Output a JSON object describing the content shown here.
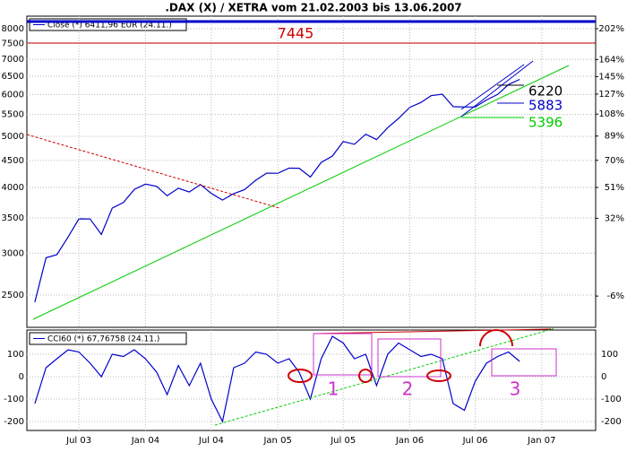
{
  "chart_data": [
    {
      "type": "line",
      "title": ".DAX (X) / XETRA vom 21.02.2003 bis 13.06.2007",
      "log_y": true,
      "x": [
        "2003-03",
        "2003-04",
        "2003-05",
        "2003-06",
        "2003-07",
        "2003-08",
        "2003-09",
        "2003-10",
        "2003-11",
        "2003-12",
        "2004-01",
        "2004-02",
        "2004-03",
        "2004-04",
        "2004-05",
        "2004-06",
        "2004-07",
        "2004-08",
        "2004-09",
        "2004-10",
        "2004-11",
        "2004-12",
        "2005-01",
        "2005-02",
        "2005-03",
        "2005-04",
        "2005-05",
        "2005-06",
        "2005-07",
        "2005-08",
        "2005-09",
        "2005-10",
        "2005-11",
        "2005-12",
        "2006-01",
        "2006-02",
        "2006-03",
        "2006-04",
        "2006-05",
        "2006-06",
        "2006-07",
        "2006-08",
        "2006-09",
        "2006-10",
        "2006-11"
      ],
      "series": [
        {
          "name": "Close (*) 6411,96 EUR (24.11.)",
          "color": "#0000cc",
          "values": [
            2424,
            2942,
            2982,
            3221,
            3487,
            3484,
            3257,
            3655,
            3745,
            3965,
            4058,
            4018,
            3856,
            3985,
            3921,
            4052,
            3896,
            3785,
            3893,
            3960,
            4126,
            4256,
            4255,
            4350,
            4349,
            4185,
            4461,
            4587,
            4887,
            4829,
            5044,
            4929,
            5193,
            5408,
            5674,
            5797,
            5970,
            6009,
            5692,
            5683,
            5682,
            5859,
            6004,
            6268,
            6412
          ]
        }
      ],
      "xlim": [
        "2003-02-21",
        "2007-06-13"
      ],
      "ylim": [
        2171,
        8450
      ],
      "yticks": [
        2500,
        3000,
        3500,
        4000,
        4500,
        5000,
        5500,
        6000,
        6500,
        7000,
        7500,
        8000
      ],
      "y2lim": [
        -18,
        219
      ],
      "y2ticks": [
        {
          "value": -6,
          "label": "-6%"
        },
        {
          "value": 32,
          "label": "32%"
        },
        {
          "value": 51,
          "label": "51%"
        },
        {
          "value": 70,
          "label": "70%"
        },
        {
          "value": 89,
          "label": "89%"
        },
        {
          "value": 108,
          "label": "108%"
        },
        {
          "value": 127,
          "label": "127%"
        },
        {
          "value": 145,
          "label": "145%"
        },
        {
          "value": 164,
          "label": "164%"
        },
        {
          "value": 202,
          "label": "202%"
        }
      ],
      "annotations": [
        "7445",
        "6220",
        "5883",
        "5396"
      ],
      "grid": true
    },
    {
      "type": "line",
      "x": [
        "2003-03",
        "2003-04",
        "2003-05",
        "2003-06",
        "2003-07",
        "2003-08",
        "2003-09",
        "2003-10",
        "2003-11",
        "2003-12",
        "2004-01",
        "2004-02",
        "2004-03",
        "2004-04",
        "2004-05",
        "2004-06",
        "2004-07",
        "2004-08",
        "2004-09",
        "2004-10",
        "2004-11",
        "2004-12",
        "2005-01",
        "2005-02",
        "2005-03",
        "2005-04",
        "2005-05",
        "2005-06",
        "2005-07",
        "2005-08",
        "2005-09",
        "2005-10",
        "2005-11",
        "2005-12",
        "2006-01",
        "2006-02",
        "2006-03",
        "2006-04",
        "2006-05",
        "2006-06",
        "2006-07",
        "2006-08",
        "2006-09",
        "2006-10",
        "2006-11"
      ],
      "series": [
        {
          "name": "CCI60 (*) 67,76758 (24.11.)",
          "color": "#0000cc",
          "values": [
            -120,
            40,
            80,
            120,
            110,
            60,
            0,
            100,
            90,
            120,
            80,
            20,
            -80,
            50,
            -40,
            60,
            -100,
            -200,
            40,
            60,
            110,
            100,
            60,
            80,
            20,
            -100,
            80,
            180,
            150,
            80,
            100,
            -40,
            100,
            150,
            120,
            90,
            100,
            80,
            -120,
            -150,
            -20,
            60,
            90,
            110,
            68
          ]
        }
      ],
      "xlim": [
        "2003-02-21",
        "2007-06-13"
      ],
      "xticks": [
        {
          "value": "2003-07",
          "label": "Jul 03"
        },
        {
          "value": "2004-01",
          "label": "Jan 04"
        },
        {
          "value": "2004-07",
          "label": "Jul 04"
        },
        {
          "value": "2005-01",
          "label": "Jan 05"
        },
        {
          "value": "2005-07",
          "label": "Jul 05"
        },
        {
          "value": "2006-01",
          "label": "Jan 06"
        },
        {
          "value": "2006-07",
          "label": "Jul 06"
        },
        {
          "value": "2007-01",
          "label": "Jan 07"
        }
      ],
      "ylim": [
        -240,
        208
      ],
      "yticks": [
        -200,
        -100,
        0,
        100
      ],
      "annotations": [
        "1",
        "2",
        "3"
      ],
      "grid": true
    }
  ]
}
